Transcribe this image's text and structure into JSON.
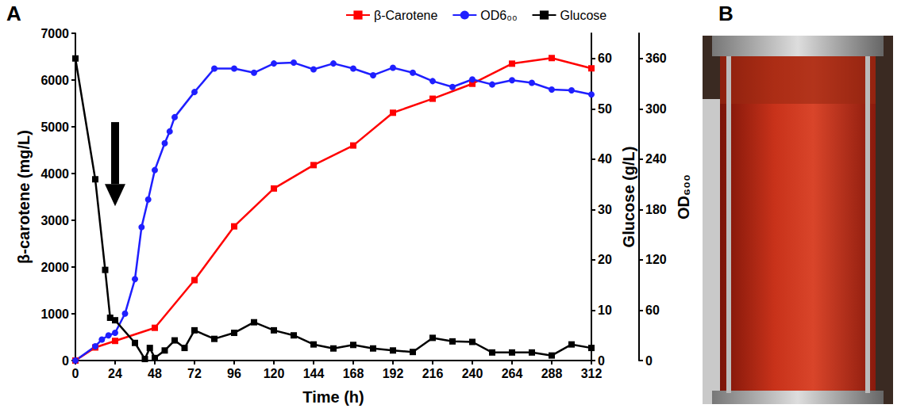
{
  "panel_labels": [
    "A",
    "B"
  ],
  "chart_data": {
    "type": "line",
    "x_label": "Time (h)",
    "y_label": "β-carotene (mg/L)",
    "y2_label": "Glucose (g/L)",
    "y3_label": "OD₆₀₀",
    "xlim": [
      0,
      312
    ],
    "xticks": [
      0,
      24,
      48,
      72,
      96,
      120,
      144,
      168,
      192,
      216,
      240,
      264,
      288,
      312
    ],
    "ylim": [
      0,
      7000
    ],
    "yticks": [
      0,
      1000,
      2000,
      3000,
      4000,
      5000,
      6000,
      7000
    ],
    "y2lim": [
      0,
      65
    ],
    "y2ticks": [
      0,
      10,
      20,
      30,
      40,
      50,
      60
    ],
    "y3lim": [
      0,
      390
    ],
    "y3ticks": [
      0,
      60,
      120,
      180,
      240,
      300,
      360
    ],
    "grid": false,
    "legend": "top",
    "arrow": {
      "x": 24,
      "y_from": 5100,
      "y_to": 3300
    },
    "series": [
      {
        "name": "β-Carotene",
        "color": "#ff0000",
        "marker": "square",
        "axis": "y",
        "x": [
          0,
          12,
          24,
          48,
          72,
          96,
          120,
          144,
          168,
          192,
          216,
          240,
          264,
          288,
          312
        ],
        "values": [
          0,
          280,
          420,
          700,
          1720,
          2870,
          3680,
          4180,
          4600,
          5300,
          5600,
          5920,
          6350,
          6470,
          6250
        ]
      },
      {
        "name": "OD6₀₀",
        "color": "#1f1fff",
        "marker": "circle",
        "axis": "y3",
        "x": [
          0,
          12,
          16,
          20,
          24,
          30,
          36,
          40,
          44,
          48,
          54,
          57,
          60,
          72,
          84,
          96,
          108,
          120,
          132,
          144,
          156,
          168,
          180,
          192,
          204,
          216,
          228,
          240,
          252,
          264,
          276,
          288,
          300,
          312
        ],
        "values": [
          0,
          17,
          25,
          30,
          33,
          56,
          97,
          159,
          192,
          227,
          259,
          273,
          290,
          320,
          348,
          348,
          343,
          354,
          355,
          347,
          354,
          348,
          340,
          349,
          343,
          333,
          326,
          335,
          329,
          334,
          331,
          323,
          322,
          317
        ]
      },
      {
        "name": "Glucose",
        "color": "#000000",
        "marker": "square",
        "axis": "y2",
        "x": [
          0,
          12,
          18,
          21,
          24,
          36,
          42,
          45,
          48,
          54,
          60,
          66,
          72,
          84,
          96,
          108,
          120,
          132,
          144,
          156,
          168,
          180,
          192,
          204,
          216,
          228,
          240,
          252,
          264,
          276,
          288,
          300,
          312
        ],
        "values": [
          60,
          36,
          18,
          8.5,
          8,
          3.5,
          0.3,
          2.5,
          0.5,
          2,
          4,
          2.5,
          6,
          4.3,
          5.5,
          7.6,
          6,
          5,
          3.2,
          2.4,
          3.1,
          2.4,
          2,
          1.7,
          4.5,
          3.8,
          3.7,
          1.6,
          1.6,
          1.6,
          1,
          3.2,
          2.5
        ]
      }
    ]
  }
}
